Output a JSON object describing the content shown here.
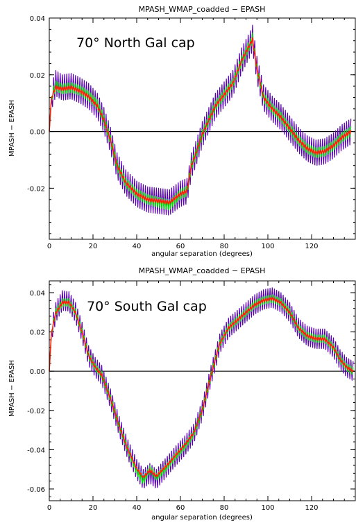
{
  "chart_data": [
    {
      "type": "line",
      "title": "MPASH_WMAP_coadded  −  EPASH",
      "xlabel": "angular separation (degrees)",
      "ylabel": "MPASH  −  EPASH",
      "annotation": "70° North Gal cap",
      "xlim": [
        0,
        140
      ],
      "ylim": [
        -0.038,
        0.04
      ],
      "xticks": [
        0,
        20,
        40,
        60,
        80,
        100,
        120
      ],
      "xtick_labels": [
        "0",
        "20",
        "40",
        "60",
        "80",
        "100",
        "120"
      ],
      "yticks": [
        -0.02,
        0.0,
        0.02,
        0.04
      ],
      "ytick_labels": [
        "-0.02",
        "0.00",
        "0.02",
        "0.04"
      ],
      "reference_line_y": 0.0,
      "grid": false,
      "series": [
        {
          "color": "#5a00b4",
          "osc": 0.0045,
          "x": [
            0,
            1,
            3,
            6,
            10,
            14,
            18,
            22,
            25,
            28,
            31,
            35,
            40,
            45,
            50,
            55,
            60,
            63,
            65,
            67,
            70,
            73,
            76,
            80,
            84,
            88,
            90,
            92,
            93,
            95,
            98,
            102,
            106,
            110,
            114,
            118,
            122,
            126,
            130,
            134,
            138
          ],
          "y": [
            0.0,
            0.012,
            0.017,
            0.0155,
            0.016,
            0.0145,
            0.0125,
            0.009,
            0.004,
            -0.003,
            -0.012,
            -0.018,
            -0.022,
            -0.024,
            -0.0245,
            -0.025,
            -0.022,
            -0.021,
            -0.012,
            -0.008,
            -0.001,
            0.004,
            0.009,
            0.013,
            0.017,
            0.025,
            0.028,
            0.031,
            0.033,
            0.022,
            0.012,
            0.008,
            0.005,
            0.001,
            -0.003,
            -0.006,
            -0.0075,
            -0.007,
            -0.005,
            -0.002,
            0.0
          ]
        },
        {
          "color": "#00c8ff",
          "osc": 0.0008,
          "x": [
            0,
            1,
            3,
            6,
            10,
            14,
            18,
            22,
            25,
            28,
            31,
            35,
            40,
            45,
            50,
            55,
            60,
            63,
            65,
            67,
            70,
            73,
            76,
            80,
            84,
            88,
            90,
            92,
            93,
            95,
            98,
            102,
            106,
            110,
            114,
            118,
            122,
            126,
            130,
            134,
            138
          ],
          "y": [
            0.0,
            0.0115,
            0.0155,
            0.015,
            0.0155,
            0.0143,
            0.0123,
            0.0088,
            0.0038,
            -0.0032,
            -0.0118,
            -0.0178,
            -0.0218,
            -0.0238,
            -0.0243,
            -0.0248,
            -0.0218,
            -0.0208,
            -0.0118,
            -0.0078,
            -0.0008,
            0.0042,
            0.0092,
            0.0132,
            0.0172,
            0.0252,
            0.0282,
            0.0312,
            0.0328,
            0.0218,
            0.0118,
            0.0078,
            0.0048,
            0.0008,
            -0.0032,
            -0.0062,
            -0.0074,
            -0.0068,
            -0.0048,
            -0.0018,
            0.0
          ]
        },
        {
          "color": "#00e600",
          "osc": 0.0018,
          "x": [
            0,
            1,
            3,
            6,
            10,
            14,
            18,
            22,
            25,
            28,
            31,
            35,
            40,
            45,
            50,
            55,
            60,
            63,
            65,
            67,
            70,
            73,
            76,
            80,
            84,
            88,
            90,
            92,
            93,
            95,
            98,
            102,
            106,
            110,
            114,
            118,
            122,
            126,
            130,
            134,
            138
          ],
          "y": [
            0.0,
            0.0125,
            0.016,
            0.015,
            0.0155,
            0.0145,
            0.0125,
            0.0095,
            0.004,
            -0.003,
            -0.012,
            -0.018,
            -0.022,
            -0.024,
            -0.025,
            -0.026,
            -0.022,
            -0.021,
            -0.012,
            -0.008,
            -0.001,
            0.004,
            0.009,
            0.013,
            0.017,
            0.025,
            0.028,
            0.031,
            0.033,
            0.022,
            0.012,
            0.008,
            0.005,
            0.001,
            -0.003,
            -0.006,
            -0.0075,
            -0.007,
            -0.005,
            -0.002,
            0.0
          ]
        },
        {
          "color": "#ff1e00",
          "osc": 0.0006,
          "x": [
            0,
            1,
            3,
            6,
            10,
            14,
            18,
            22,
            25,
            28,
            31,
            35,
            40,
            45,
            50,
            55,
            60,
            63,
            65,
            67,
            70,
            73,
            76,
            80,
            84,
            88,
            90,
            92,
            93,
            95,
            98,
            102,
            106,
            110,
            114,
            118,
            122,
            126,
            130,
            134,
            138
          ],
          "y": [
            0.0,
            0.012,
            0.0155,
            0.015,
            0.0155,
            0.0143,
            0.0123,
            0.009,
            0.004,
            -0.003,
            -0.012,
            -0.018,
            -0.022,
            -0.024,
            -0.0245,
            -0.025,
            -0.022,
            -0.021,
            -0.012,
            -0.008,
            -0.001,
            0.004,
            0.009,
            0.013,
            0.017,
            0.025,
            0.028,
            0.031,
            0.0325,
            0.022,
            0.012,
            0.008,
            0.005,
            0.001,
            -0.003,
            -0.006,
            -0.0075,
            -0.007,
            -0.005,
            -0.002,
            0.0
          ]
        }
      ]
    },
    {
      "type": "line",
      "title": "MPASH_WMAP_coadded  −  EPASH",
      "xlabel": "angular separation (degrees)",
      "ylabel": "MPASH  −  EPASH",
      "annotation": "70° South Gal cap",
      "xlim": [
        0,
        140
      ],
      "ylim": [
        -0.066,
        0.046
      ],
      "xticks": [
        0,
        20,
        40,
        60,
        80,
        100,
        120
      ],
      "xtick_labels": [
        "0",
        "20",
        "40",
        "60",
        "80",
        "100",
        "120"
      ],
      "yticks": [
        -0.06,
        -0.04,
        -0.02,
        0.0,
        0.02,
        0.04
      ],
      "ytick_labels": [
        "-0.06",
        "-0.04",
        "-0.02",
        "0.00",
        "0.02",
        "0.04"
      ],
      "reference_line_y": 0.0,
      "grid": false,
      "series": [
        {
          "color": "#5a00b4",
          "osc": 0.005,
          "x": [
            0,
            1,
            3,
            6,
            9,
            12,
            15,
            18,
            21,
            24,
            28,
            32,
            36,
            40,
            43,
            46,
            49,
            52,
            55,
            58,
            62,
            66,
            70,
            74,
            78,
            82,
            86,
            90,
            94,
            98,
            102,
            106,
            110,
            114,
            118,
            122,
            126,
            130,
            133,
            136,
            139
          ],
          "y": [
            0.0,
            0.02,
            0.03,
            0.036,
            0.0355,
            0.03,
            0.02,
            0.008,
            0.002,
            -0.002,
            -0.014,
            -0.028,
            -0.04,
            -0.05,
            -0.055,
            -0.052,
            -0.055,
            -0.051,
            -0.047,
            -0.043,
            -0.038,
            -0.032,
            -0.02,
            -0.002,
            0.014,
            0.022,
            0.026,
            0.03,
            0.034,
            0.0365,
            0.0375,
            0.035,
            0.03,
            0.022,
            0.018,
            0.0165,
            0.0165,
            0.012,
            0.006,
            0.002,
            0.0
          ]
        },
        {
          "color": "#00c8ff",
          "osc": 0.001,
          "x": [
            0,
            1,
            3,
            6,
            9,
            12,
            15,
            18,
            21,
            24,
            28,
            32,
            36,
            40,
            43,
            46,
            49,
            52,
            55,
            58,
            62,
            66,
            70,
            74,
            78,
            82,
            86,
            90,
            94,
            98,
            102,
            106,
            110,
            114,
            118,
            122,
            126,
            130,
            133,
            136,
            139
          ],
          "y": [
            0.0,
            0.0195,
            0.0295,
            0.0352,
            0.0348,
            0.0295,
            0.0198,
            0.0078,
            0.0018,
            -0.0022,
            -0.0142,
            -0.0278,
            -0.0398,
            -0.0495,
            -0.0535,
            -0.0505,
            -0.0535,
            -0.0498,
            -0.0462,
            -0.0422,
            -0.0372,
            -0.0312,
            -0.0195,
            -0.0018,
            0.0138,
            0.0218,
            0.0258,
            0.0298,
            0.0335,
            0.0358,
            0.0368,
            0.0345,
            0.0295,
            0.0218,
            0.0178,
            0.0163,
            0.0162,
            0.0118,
            0.0058,
            0.0018,
            0.0
          ]
        },
        {
          "color": "#00e600",
          "osc": 0.002,
          "x": [
            0,
            1,
            3,
            6,
            9,
            12,
            15,
            18,
            21,
            24,
            28,
            32,
            36,
            40,
            43,
            46,
            49,
            52,
            55,
            58,
            62,
            66,
            70,
            74,
            78,
            82,
            86,
            90,
            94,
            98,
            102,
            106,
            110,
            114,
            118,
            122,
            126,
            130,
            133,
            136,
            139
          ],
          "y": [
            0.0,
            0.02,
            0.03,
            0.035,
            0.035,
            0.03,
            0.02,
            0.008,
            0.002,
            -0.002,
            -0.014,
            -0.028,
            -0.04,
            -0.051,
            -0.056,
            -0.05,
            -0.054,
            -0.051,
            -0.047,
            -0.043,
            -0.038,
            -0.032,
            -0.02,
            -0.002,
            0.014,
            0.022,
            0.026,
            0.03,
            0.034,
            0.036,
            0.037,
            0.035,
            0.03,
            0.022,
            0.018,
            0.0165,
            0.0165,
            0.012,
            0.006,
            0.002,
            0.0
          ]
        },
        {
          "color": "#ff1e00",
          "osc": 0.0007,
          "x": [
            0,
            1,
            3,
            6,
            9,
            12,
            15,
            18,
            21,
            24,
            28,
            32,
            36,
            40,
            43,
            46,
            49,
            52,
            55,
            58,
            62,
            66,
            70,
            74,
            78,
            82,
            86,
            90,
            94,
            98,
            102,
            106,
            110,
            114,
            118,
            122,
            126,
            130,
            133,
            136,
            139
          ],
          "y": [
            0.0,
            0.02,
            0.0295,
            0.035,
            0.035,
            0.0298,
            0.0198,
            0.008,
            0.002,
            -0.002,
            -0.014,
            -0.028,
            -0.04,
            -0.0495,
            -0.054,
            -0.0505,
            -0.0535,
            -0.05,
            -0.0465,
            -0.0425,
            -0.0375,
            -0.0315,
            -0.0198,
            -0.002,
            0.014,
            0.022,
            0.026,
            0.03,
            0.0338,
            0.036,
            0.037,
            0.0348,
            0.0298,
            0.022,
            0.018,
            0.0165,
            0.0163,
            0.012,
            0.006,
            0.002,
            0.0
          ]
        }
      ]
    }
  ]
}
